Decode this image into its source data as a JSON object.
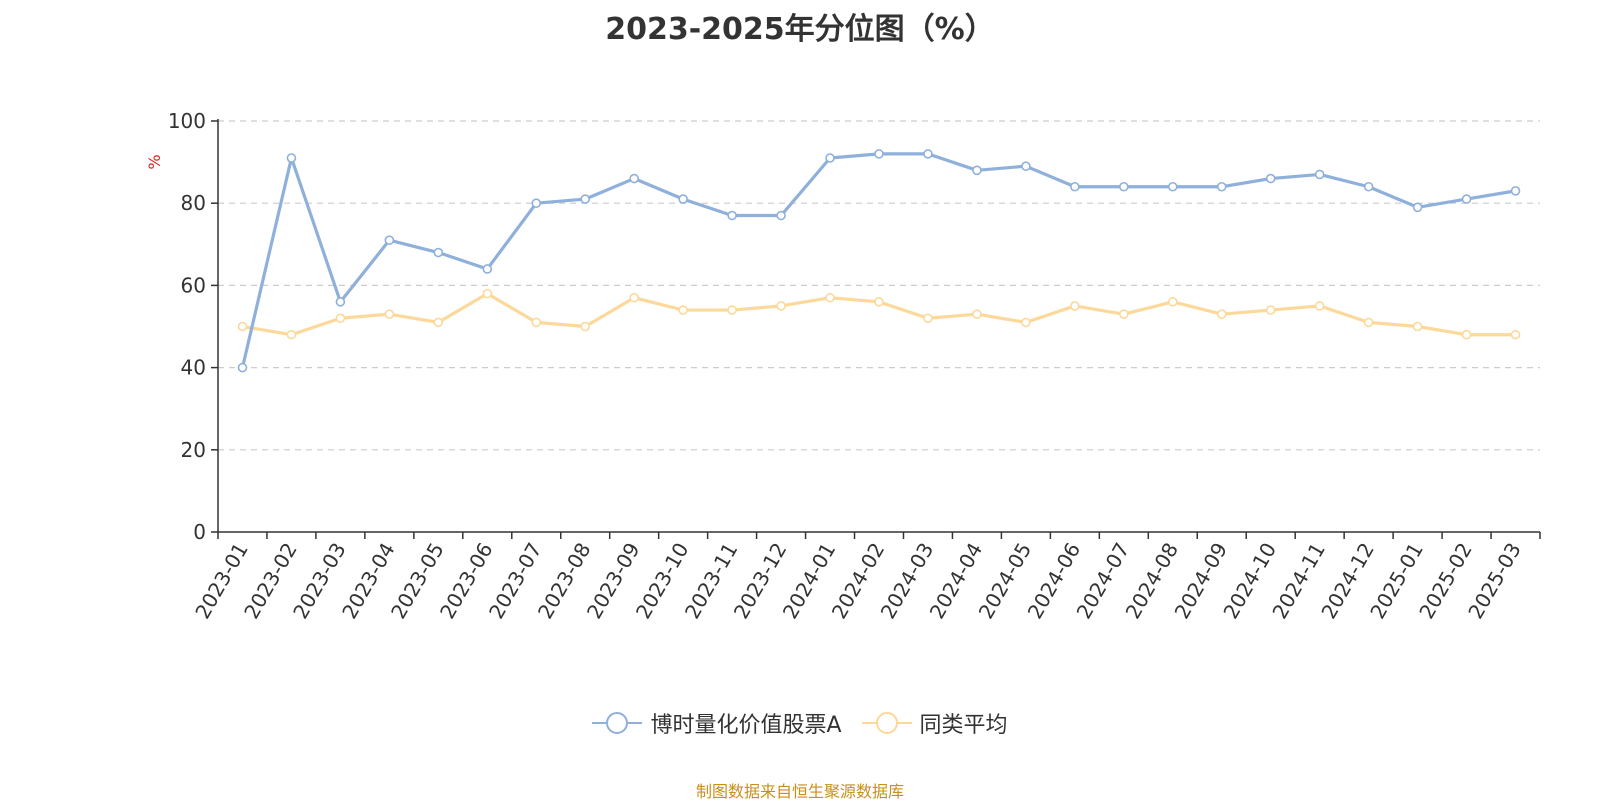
{
  "chart_data": {
    "type": "line",
    "title": "2023-2025年分位图（%）",
    "ylabel": "%",
    "ylim": [
      0,
      100
    ],
    "yticks": [
      0,
      20,
      40,
      60,
      80,
      100
    ],
    "grid": "horizontal-dashed",
    "legend_position": "bottom",
    "categories": [
      "2023-01",
      "2023-02",
      "2023-03",
      "2023-04",
      "2023-05",
      "2023-06",
      "2023-07",
      "2023-08",
      "2023-09",
      "2023-10",
      "2023-11",
      "2023-12",
      "2024-01",
      "2024-02",
      "2024-03",
      "2024-04",
      "2024-05",
      "2024-06",
      "2024-07",
      "2024-08",
      "2024-09",
      "2024-10",
      "2024-11",
      "2024-12",
      "2025-01",
      "2025-02",
      "2025-03"
    ],
    "series": [
      {
        "name": "博时量化价值股票A",
        "color": "#8eb0db",
        "values": [
          40,
          91,
          56,
          71,
          68,
          64,
          80,
          81,
          86,
          81,
          77,
          77,
          91,
          92,
          92,
          88,
          89,
          84,
          84,
          84,
          84,
          86,
          87,
          84,
          79,
          81,
          83
        ]
      },
      {
        "name": "同类平均",
        "color": "#fcd99a",
        "values": [
          50,
          48,
          52,
          53,
          51,
          58,
          51,
          50,
          57,
          54,
          54,
          55,
          57,
          56,
          52,
          53,
          51,
          55,
          53,
          56,
          53,
          54,
          55,
          51,
          50,
          48,
          48
        ]
      }
    ]
  },
  "source_text": "制图数据来自恒生聚源数据库"
}
